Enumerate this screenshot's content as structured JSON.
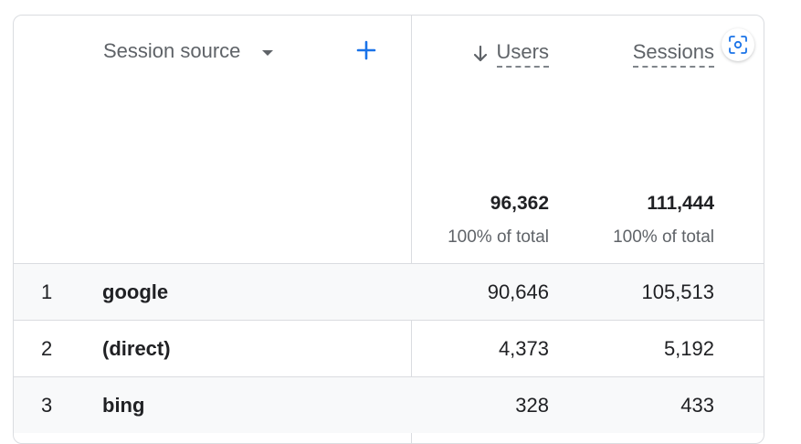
{
  "table": {
    "dimension_label": "Session source",
    "metrics": [
      {
        "label": "Users",
        "sorted": "desc"
      },
      {
        "label": "Sessions"
      }
    ],
    "totals": {
      "users": "96,362",
      "users_pct": "100% of total",
      "sessions": "111,444",
      "sessions_pct": "100% of total"
    },
    "rows": [
      {
        "index": "1",
        "source": "google",
        "users": "90,646",
        "sessions": "105,513"
      },
      {
        "index": "2",
        "source": "(direct)",
        "users": "4,373",
        "sessions": "5,192"
      },
      {
        "index": "3",
        "source": "bing",
        "users": "328",
        "sessions": "433"
      }
    ]
  },
  "colors": {
    "accent": "#1a73e8",
    "border": "#dadce0",
    "muted_text": "#5f6368"
  },
  "icons": {
    "add": "plus-icon",
    "sort": "arrow-down-icon",
    "dropdown": "caret-down-icon",
    "scan": "focus-scan-icon"
  }
}
